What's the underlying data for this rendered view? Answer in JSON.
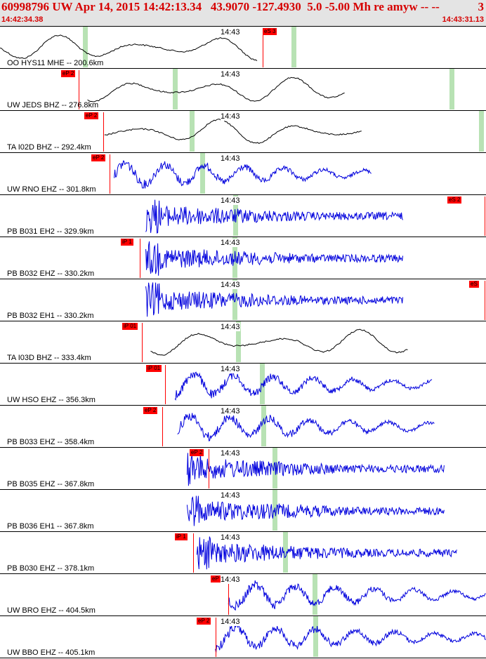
{
  "header": {
    "title": "60998796 UW Apr 14, 2015 14:42:13.34   43.9070 -127.4930  5.0 -5.00 Mh re amyw -- --",
    "page_num": "3",
    "time_start": "14:42:34.38",
    "time_end": "14:43:31.13"
  },
  "colors": {
    "wave_black": "#000000",
    "wave_blue": "#0000dd",
    "pick_red": "#ff0000",
    "header_red": "#d60000",
    "marker_green": "#b8e2b4"
  },
  "traces": [
    {
      "station": "OO HYS11 MHE -- 200.6km",
      "time_label": "14:43",
      "pick": "eS 3",
      "color": "black",
      "style": "low",
      "start": 0.0,
      "end": 0.53,
      "pick_pos": 0.54,
      "pick_line": 0.54,
      "green": [
        0.17,
        0.6
      ]
    },
    {
      "station": "UW JEDS BHZ -- 276.8km",
      "time_label": "14:43",
      "pick": "eP 2",
      "color": "black",
      "style": "low",
      "start": 0.18,
      "end": 0.71,
      "pick_pos": 0.125,
      "pick_line": 0.162,
      "green": [
        0.355,
        0.925
      ]
    },
    {
      "station": "TA I02D BHZ -- 292.4km",
      "time_label": "14:43",
      "pick": "eP 2",
      "color": "black",
      "style": "low",
      "start": 0.215,
      "end": 0.745,
      "pick_pos": 0.173,
      "pick_line": 0.212,
      "green": [
        0.39,
        0.985
      ]
    },
    {
      "station": "UW RNO EHZ -- 301.8km",
      "time_label": "14:43",
      "pick": "eP 2",
      "color": "blue",
      "style": "mid",
      "start": 0.235,
      "end": 0.765,
      "pick_pos": 0.188,
      "pick_line": 0.225,
      "green": [
        0.412
      ]
    },
    {
      "station": "PB B031 EH2 -- 329.9km",
      "time_label": "14:43",
      "pick": "eS 2",
      "color": "blue",
      "style": "hf",
      "start": 0.3,
      "end": 0.83,
      "pick_pos": 0.92,
      "pick_line": 0.997,
      "green": [
        0.48
      ]
    },
    {
      "station": "PB B032 EHZ -- 330.2km",
      "time_label": "14:43",
      "pick": "iP 1",
      "color": "blue",
      "style": "hf",
      "start": 0.3,
      "end": 0.83,
      "pick_pos": 0.248,
      "pick_line": 0.287,
      "green": [
        0.478
      ]
    },
    {
      "station": "PB B032 EH1 -- 330.2km",
      "time_label": "14:43",
      "pick": "eS",
      "color": "blue",
      "style": "hf",
      "start": 0.3,
      "end": 0.83,
      "pick_pos": 0.978,
      "pick_line": 0.997,
      "green": [
        0.478
      ]
    },
    {
      "station": "TA I03D BHZ -- 333.4km",
      "time_label": "14:43",
      "pick": "iP 01",
      "color": "black",
      "style": "low",
      "start": 0.31,
      "end": 0.84,
      "pick_pos": 0.252,
      "pick_line": 0.292,
      "green": [
        0.485
      ]
    },
    {
      "station": "UW HSO EHZ -- 356.3km",
      "time_label": "14:43",
      "pick": "iP 01",
      "color": "blue",
      "style": "mid",
      "start": 0.36,
      "end": 0.89,
      "pick_pos": 0.3,
      "pick_line": 0.339,
      "green": [
        0.535
      ]
    },
    {
      "station": "PB B033 EHZ -- 358.4km",
      "time_label": "14:43",
      "pick": "eP 2",
      "color": "blue",
      "style": "mid",
      "start": 0.365,
      "end": 0.895,
      "pick_pos": 0.295,
      "pick_line": 0.334,
      "green": [
        0.538
      ]
    },
    {
      "station": "PB B035 EHZ -- 367.8km",
      "time_label": "14:43",
      "pick": "eP 2",
      "color": "blue",
      "style": "hf",
      "start": 0.385,
      "end": 0.915,
      "pick_pos": 0.39,
      "pick_line": 0.429,
      "green": [
        0.56
      ]
    },
    {
      "station": "PB B036 EH1 -- 367.8km",
      "time_label": "14:43",
      "pick": "",
      "color": "blue",
      "style": "hf",
      "start": 0.385,
      "end": 0.915,
      "pick_pos": -1,
      "pick_line": -1,
      "green": [
        0.56
      ]
    },
    {
      "station": "PB B030 EHZ -- 378.1km",
      "time_label": "14:43",
      "pick": "iP 1",
      "color": "blue",
      "style": "hf",
      "start": 0.405,
      "end": 0.94,
      "pick_pos": 0.36,
      "pick_line": 0.398,
      "green": [
        0.583
      ]
    },
    {
      "station": "UW BRO EHZ -- 404.5km",
      "time_label": "14:43",
      "pick": "eP 2",
      "color": "blue",
      "style": "mid",
      "start": 0.47,
      "end": 1.0,
      "pick_pos": 0.433,
      "pick_line": 0.47,
      "green": [
        0.643
      ]
    },
    {
      "station": "UW BBO EHZ -- 405.1km",
      "time_label": "14:43",
      "pick": "eP 2",
      "color": "blue",
      "style": "mid",
      "start": 0.443,
      "end": 1.0,
      "pick_pos": 0.405,
      "pick_line": 0.443,
      "green": [
        0.645
      ]
    }
  ]
}
